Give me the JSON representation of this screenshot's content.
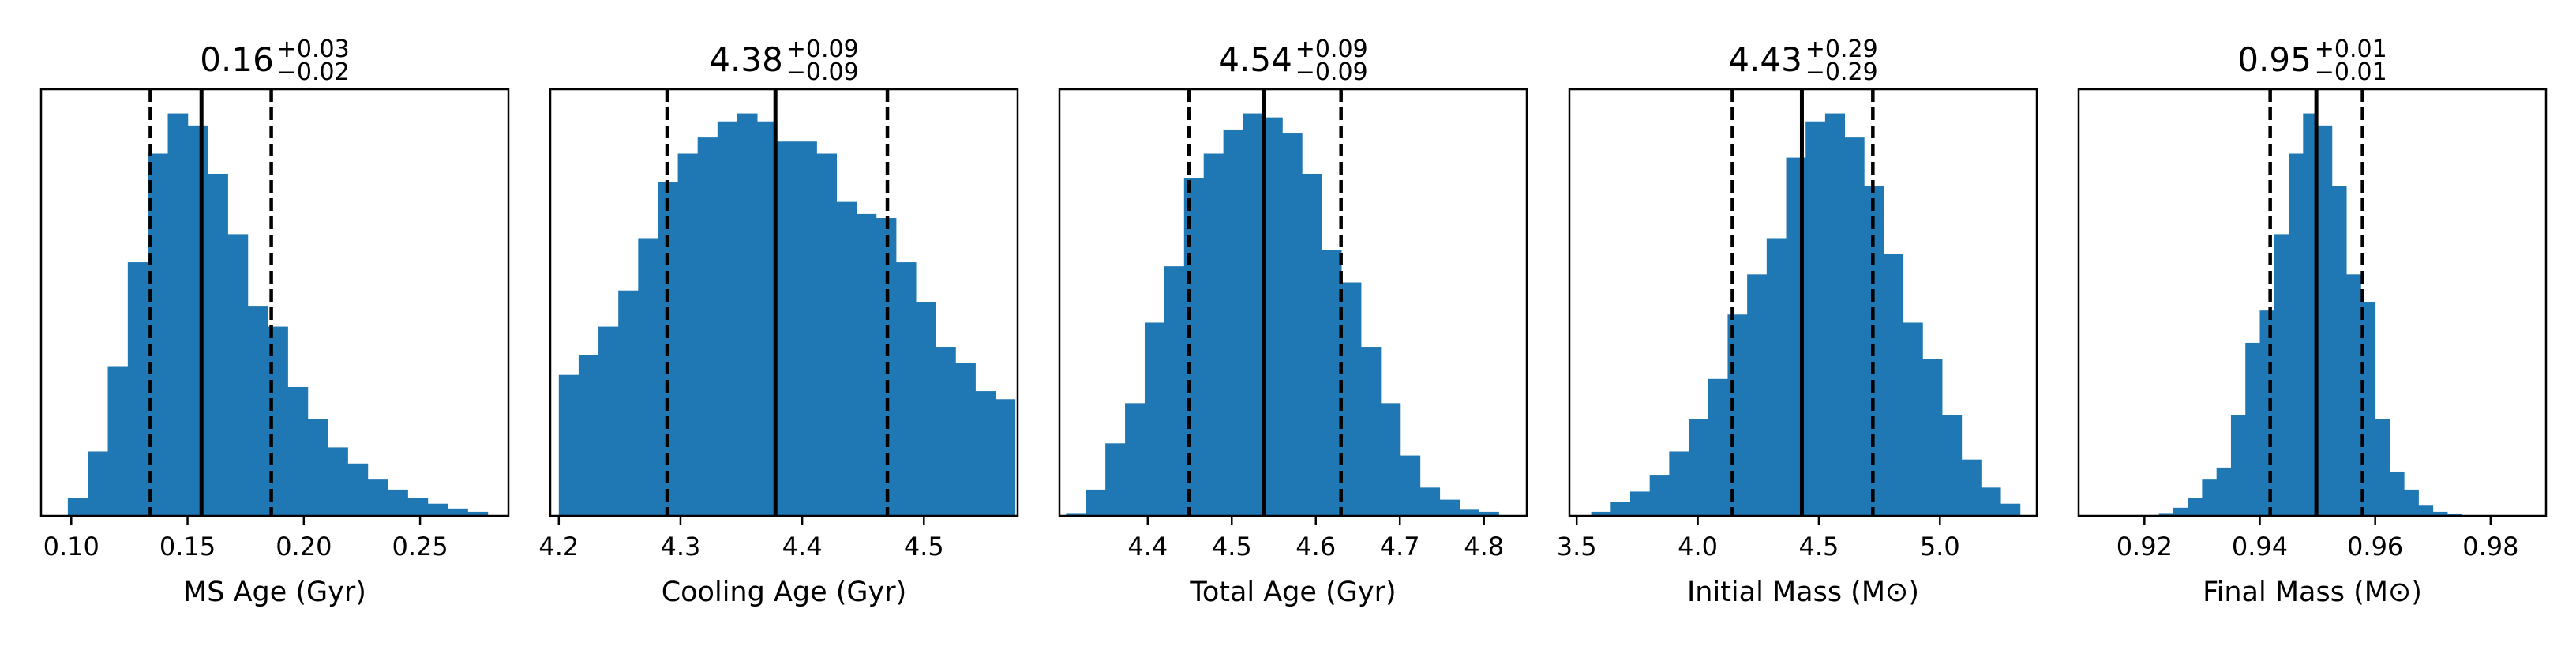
{
  "figure": {
    "bar_color": "#1f77b4",
    "line_color": "#000000"
  },
  "chart_data": [
    {
      "type": "bar",
      "title_value": "0.16",
      "title_upper": "+0.03",
      "title_lower": "−0.02",
      "xlabel": "MS Age (Gyr)",
      "xlim": [
        0.087,
        0.288
      ],
      "ylim": [
        0,
        1.06
      ],
      "xticks": [
        0.1,
        0.15,
        0.2,
        0.25
      ],
      "xtick_labels": [
        "0.10",
        "0.15",
        "0.20",
        "0.25"
      ],
      "bin_edges": [
        0.0985,
        0.1071,
        0.1157,
        0.1243,
        0.1329,
        0.1415,
        0.1501,
        0.1587,
        0.1673,
        0.1759,
        0.1845,
        0.1931,
        0.2017,
        0.2103,
        0.2189,
        0.2275,
        0.2361,
        0.2447,
        0.2533,
        0.2619,
        0.2705,
        0.2791
      ],
      "values": [
        0.045,
        0.16,
        0.37,
        0.63,
        0.9,
        1.0,
        0.97,
        0.85,
        0.7,
        0.52,
        0.47,
        0.32,
        0.24,
        0.17,
        0.13,
        0.09,
        0.065,
        0.045,
        0.03,
        0.018,
        0.01
      ],
      "median": 0.156,
      "lower": 0.134,
      "upper": 0.186
    },
    {
      "type": "bar",
      "title_value": "4.38",
      "title_upper": "+0.09",
      "title_lower": "−0.09",
      "xlabel": "Cooling Age (Gyr)",
      "xlim": [
        4.193,
        4.577
      ],
      "ylim": [
        0,
        1.06
      ],
      "xticks": [
        4.2,
        4.3,
        4.4,
        4.5
      ],
      "xtick_labels": [
        "4.2",
        "4.3",
        "4.4",
        "4.5"
      ],
      "bin_edges": [
        4.2,
        4.2163,
        4.2326,
        4.2489,
        4.2652,
        4.2815,
        4.2978,
        4.3141,
        4.3304,
        4.3467,
        4.363,
        4.3793,
        4.3956,
        4.4119,
        4.4282,
        4.4445,
        4.4608,
        4.4771,
        4.4934,
        4.5097,
        4.526,
        4.5423,
        4.5586,
        4.5749
      ],
      "values": [
        0.35,
        0.4,
        0.47,
        0.56,
        0.69,
        0.83,
        0.9,
        0.94,
        0.98,
        1.0,
        0.98,
        0.93,
        0.93,
        0.9,
        0.78,
        0.75,
        0.74,
        0.63,
        0.53,
        0.42,
        0.38,
        0.31,
        0.29
      ],
      "median": 4.378,
      "lower": 4.289,
      "upper": 4.47
    },
    {
      "type": "bar",
      "title_value": "4.54",
      "title_upper": "+0.09",
      "title_lower": "−0.09",
      "xlabel": "Total Age (Gyr)",
      "xlim": [
        4.295,
        4.851
      ],
      "ylim": [
        0,
        1.06
      ],
      "xticks": [
        4.4,
        4.5,
        4.6,
        4.7,
        4.8
      ],
      "xtick_labels": [
        "4.4",
        "4.5",
        "4.6",
        "4.7",
        "4.8"
      ],
      "bin_edges": [
        4.3028,
        4.3262,
        4.3496,
        4.373,
        4.3964,
        4.4198,
        4.4432,
        4.4666,
        4.49,
        4.5134,
        4.5368,
        4.5602,
        4.5836,
        4.607,
        4.6304,
        4.6538,
        4.6772,
        4.7006,
        4.724,
        4.7474,
        4.7708,
        4.7942,
        4.8176
      ],
      "values": [
        0.005,
        0.065,
        0.18,
        0.28,
        0.48,
        0.62,
        0.84,
        0.9,
        0.96,
        1.0,
        0.99,
        0.95,
        0.85,
        0.66,
        0.58,
        0.42,
        0.28,
        0.15,
        0.07,
        0.04,
        0.015,
        0.01
      ],
      "median": 4.538,
      "lower": 4.449,
      "upper": 4.63
    },
    {
      "type": "bar",
      "title_value": "4.43",
      "title_upper": "+0.29",
      "title_lower": "−0.29",
      "xlabel": "Initial Mass (M⊙)",
      "xlim": [
        3.47,
        5.4
      ],
      "ylim": [
        0,
        1.06
      ],
      "xticks": [
        3.5,
        4.0,
        4.5,
        5.0
      ],
      "xtick_labels": [
        "3.5",
        "4.0",
        "4.5",
        "5.0"
      ],
      "bin_edges": [
        3.56,
        3.6405,
        3.721,
        3.8015,
        3.882,
        3.9625,
        4.043,
        4.1235,
        4.204,
        4.2845,
        4.365,
        4.4455,
        4.526,
        4.6065,
        4.687,
        4.7675,
        4.848,
        4.9285,
        5.009,
        5.0895,
        5.17,
        5.2505,
        5.331
      ],
      "values": [
        0.01,
        0.035,
        0.06,
        0.1,
        0.16,
        0.24,
        0.34,
        0.5,
        0.6,
        0.69,
        0.89,
        0.98,
        1.0,
        0.94,
        0.82,
        0.65,
        0.48,
        0.39,
        0.25,
        0.14,
        0.07,
        0.03
      ],
      "median": 4.43,
      "lower": 4.143,
      "upper": 4.723
    },
    {
      "type": "bar",
      "title_value": "0.95",
      "title_upper": "+0.01",
      "title_lower": "−0.01",
      "xlabel": "Final Mass (M⊙)",
      "xlim": [
        0.9086,
        0.9896
      ],
      "ylim": [
        0,
        1.06
      ],
      "xticks": [
        0.92,
        0.94,
        0.96,
        0.98
      ],
      "xtick_labels": [
        "0.92",
        "0.94",
        "0.96",
        "0.98"
      ],
      "bin_edges": [
        0.9175,
        0.92,
        0.9225,
        0.925,
        0.9275,
        0.93,
        0.9325,
        0.935,
        0.9375,
        0.94,
        0.9425,
        0.945,
        0.9475,
        0.95,
        0.9525,
        0.955,
        0.9575,
        0.96,
        0.9625,
        0.965,
        0.9675,
        0.97,
        0.9725,
        0.975,
        0.9775,
        0.98,
        0.9825,
        0.985,
        0.9875
      ],
      "values": [
        0.0,
        0.002,
        0.005,
        0.02,
        0.045,
        0.09,
        0.12,
        0.25,
        0.43,
        0.51,
        0.7,
        0.9,
        1.0,
        0.97,
        0.82,
        0.6,
        0.53,
        0.24,
        0.11,
        0.065,
        0.025,
        0.01,
        0.004,
        0.001,
        0.0,
        0.0,
        0.0,
        0.0
      ],
      "median": 0.9498,
      "lower": 0.9418,
      "upper": 0.9578
    }
  ]
}
